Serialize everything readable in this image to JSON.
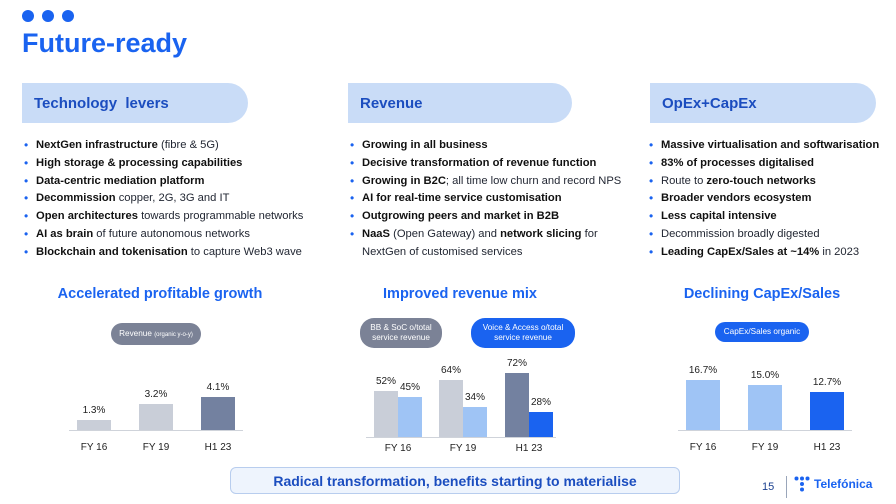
{
  "title": "Future-ready",
  "columns": [
    {
      "header": "Technology  levers",
      "bullets": [
        {
          "bold": "NextGen infrastructure",
          "rest": " (fibre & 5G)"
        },
        {
          "bold": "High storage & processing capabilities",
          "rest": ""
        },
        {
          "bold": "Data-centric mediation platform",
          "rest": ""
        },
        {
          "bold": "Decommission",
          "rest": " copper, 2G, 3G and IT"
        },
        {
          "bold": "Open architectures",
          "rest": " towards programmable networks"
        },
        {
          "bold": "AI as brain",
          "rest": " of future autonomous networks"
        },
        {
          "bold": "Blockchain and tokenisation",
          "rest": " to capture Web3 wave"
        }
      ]
    },
    {
      "header": "Revenue",
      "bullets": [
        {
          "bold": "Growing in all business",
          "rest": ""
        },
        {
          "bold": "Decisive transformation of revenue function",
          "rest": ""
        },
        {
          "bold": "Growing in B2C",
          "rest": "; all time low churn and record NPS"
        },
        {
          "bold": "AI for real-time service customisation",
          "rest": ""
        },
        {
          "bold": "Outgrowing peers and market in B2B",
          "rest": ""
        },
        {
          "bold": "NaaS",
          "rest": " (Open Gateway) and ",
          "bold2": "network slicing",
          "rest2": " for",
          "line2": "NextGen of customised services"
        }
      ]
    },
    {
      "header": "OpEx+CapEx",
      "bullets": [
        {
          "bold": "Massive virtualisation and softwarisation",
          "rest": ""
        },
        {
          "bold": "83% of processes digitalised",
          "rest": ""
        },
        {
          "pre": "Route to ",
          "bold": "zero-touch networks",
          "rest": ""
        },
        {
          "bold": "Broader vendors ecosystem",
          "rest": ""
        },
        {
          "bold": "Less capital intensive",
          "rest": ""
        },
        {
          "pre": "Decommission broadly digested",
          "bold": "",
          "rest": ""
        },
        {
          "bold": "Leading CapEx/Sales at ~14%",
          "rest": " in 2023"
        }
      ]
    }
  ],
  "chart_data": [
    {
      "type": "bar",
      "title": "Accelerated profitable growth",
      "legend": {
        "label": "Revenue",
        "note": "(organic y-o-y)"
      },
      "categories": [
        "FY 16",
        "FY 19",
        "H1 23"
      ],
      "values": [
        1.3,
        3.2,
        4.1
      ],
      "labels": [
        "1.3%",
        "3.2%",
        "4.1%"
      ],
      "colors": [
        "#c9ced8",
        "#c9ced8",
        "#7381a0"
      ]
    },
    {
      "type": "bar",
      "title": "Improved revenue mix",
      "categories": [
        "FY 16",
        "FY 19",
        "H1 23"
      ],
      "series": [
        {
          "name": "BB & SoC o/total service revenue",
          "values": [
            52,
            64,
            72
          ],
          "labels": [
            "52%",
            "64%",
            "72%"
          ]
        },
        {
          "name": "Voice & Access o/total service revenue",
          "values": [
            45,
            34,
            28
          ],
          "labels": [
            "45%",
            "34%",
            "28%"
          ]
        }
      ],
      "colors": {
        "s1": [
          "#c9ced8",
          "#c9ced8",
          "#7381a0"
        ],
        "s2": [
          "#9fc4f5",
          "#9fc4f5",
          "#1a63f0"
        ]
      }
    },
    {
      "type": "bar",
      "title": "Declining CapEx/Sales",
      "legend": {
        "label": "CapEx/Sales organic"
      },
      "categories": [
        "FY 16",
        "FY 19",
        "H1 23"
      ],
      "values": [
        16.7,
        15.0,
        12.7
      ],
      "labels": [
        "16.7%",
        "15.0%",
        "12.7%"
      ],
      "colors": [
        "#9fc4f5",
        "#9fc4f5",
        "#1a63f0"
      ]
    }
  ],
  "footer": "Radical transformation, benefits starting to materialise",
  "page_number": "15",
  "brand": "Telefónica",
  "colors": {
    "accent": "#1a63f0",
    "pill": "#c9dcf7",
    "gray_bar": "#c9ced8",
    "slate_bar": "#7381a0",
    "light_blue_bar": "#9fc4f5"
  }
}
